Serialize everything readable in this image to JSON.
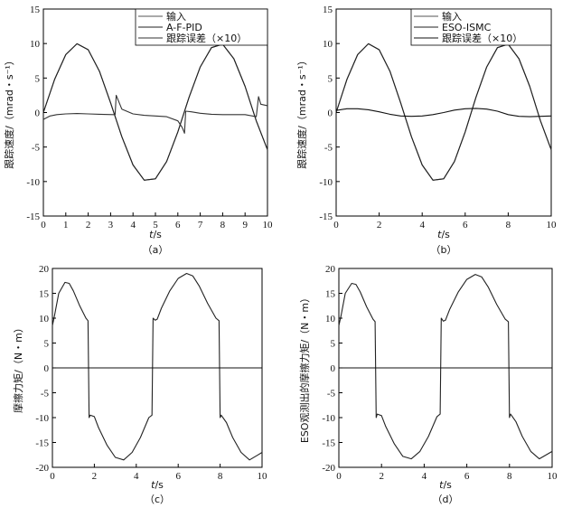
{
  "chart_data": [
    {
      "type": "line",
      "caption": "（a）",
      "xlabel_var": "t",
      "xlabel_unit": "/s",
      "ylabel": "跟踪速度/（mrad・s⁻¹）",
      "xlim": [
        0,
        10
      ],
      "ylim": [
        -15,
        15
      ],
      "xticks": [
        "0",
        "1",
        "2",
        "3",
        "4",
        "5",
        "6",
        "7",
        "8",
        "9",
        "10"
      ],
      "yticks": [
        "15",
        "10",
        "5",
        "0",
        "-5",
        "-10",
        "-15"
      ],
      "grid": false,
      "legend_position": "top-right",
      "series": [
        {
          "name": "输入",
          "color": "#555555",
          "x": [
            0,
            0.5,
            1,
            1.5,
            2,
            2.5,
            3,
            3.5,
            4,
            4.5,
            5,
            5.5,
            6,
            6.5,
            7,
            7.5,
            8,
            8.5,
            9,
            9.5,
            10
          ],
          "y": [
            0,
            4.8,
            8.4,
            9.97,
            9.1,
            6,
            1.4,
            -3.5,
            -7.6,
            -9.8,
            -9.6,
            -7.1,
            -2.8,
            2.2,
            6.6,
            9.4,
            9.9,
            7.8,
            3.8,
            -1.2,
            -5.4
          ]
        },
        {
          "name": "A-F-PID",
          "color": "#222222",
          "x": [
            0,
            0.5,
            1,
            1.5,
            2,
            2.5,
            3,
            3.5,
            4,
            4.5,
            5,
            5.5,
            6,
            6.5,
            7,
            7.5,
            8,
            8.5,
            9,
            9.5,
            10
          ],
          "y": [
            0,
            4.8,
            8.4,
            9.97,
            9.1,
            6,
            1.4,
            -3.5,
            -7.6,
            -9.8,
            -9.6,
            -7.1,
            -2.8,
            2.2,
            6.6,
            9.4,
            9.9,
            7.8,
            3.8,
            -1.2,
            -5.4
          ]
        },
        {
          "name": "跟踪误差（×10）",
          "color": "#333333",
          "x": [
            0,
            0.3,
            0.6,
            1,
            1.5,
            2,
            2.5,
            3.1,
            3.2,
            3.25,
            3.5,
            4,
            4.5,
            5,
            5.5,
            6,
            6.2,
            6.3,
            6.35,
            6.6,
            7,
            7.5,
            8,
            8.5,
            9,
            9.5,
            9.6,
            9.7,
            10
          ],
          "y": [
            -1,
            -0.5,
            -0.3,
            -0.2,
            -0.15,
            -0.2,
            -0.25,
            -0.3,
            -0.3,
            2.5,
            0.5,
            -0.2,
            -0.4,
            -0.5,
            -0.6,
            -1.2,
            -2.2,
            -3,
            0.2,
            0.1,
            -0.1,
            -0.25,
            -0.3,
            -0.3,
            -0.3,
            -0.6,
            2.3,
            1.2,
            1
          ]
        }
      ]
    },
    {
      "type": "line",
      "caption": "（b）",
      "xlabel_var": "t",
      "xlabel_unit": "/s",
      "ylabel": "跟踪速度/（mrad・s⁻¹）",
      "xlim": [
        0,
        10
      ],
      "ylim": [
        -15,
        15
      ],
      "xticks": [
        "0",
        "2",
        "4",
        "6",
        "8",
        "10"
      ],
      "yticks": [
        "15",
        "10",
        "5",
        "0",
        "-5",
        "-10",
        "-15"
      ],
      "grid": false,
      "legend_position": "top-right",
      "series": [
        {
          "name": "输入",
          "color": "#555555",
          "x": [
            0,
            0.5,
            1,
            1.5,
            2,
            2.5,
            3,
            3.5,
            4,
            4.5,
            5,
            5.5,
            6,
            6.5,
            7,
            7.5,
            8,
            8.5,
            9,
            9.5,
            10
          ],
          "y": [
            0,
            4.8,
            8.4,
            9.97,
            9.1,
            6,
            1.4,
            -3.5,
            -7.6,
            -9.8,
            -9.6,
            -7.1,
            -2.8,
            2.2,
            6.6,
            9.4,
            9.9,
            7.8,
            3.8,
            -1.2,
            -5.4
          ]
        },
        {
          "name": "ESO-ISMC",
          "color": "#222222",
          "x": [
            0,
            0.5,
            1,
            1.5,
            2,
            2.5,
            3,
            3.5,
            4,
            4.5,
            5,
            5.5,
            6,
            6.5,
            7,
            7.5,
            8,
            8.5,
            9,
            9.5,
            10
          ],
          "y": [
            0,
            4.8,
            8.4,
            9.97,
            9.1,
            6,
            1.4,
            -3.5,
            -7.6,
            -9.8,
            -9.6,
            -7.1,
            -2.8,
            2.2,
            6.6,
            9.4,
            9.9,
            7.8,
            3.8,
            -1.2,
            -5.4
          ]
        },
        {
          "name": "跟踪误差（×10）",
          "color": "#111111",
          "x": [
            0,
            0.5,
            1,
            1.5,
            2,
            2.5,
            3,
            3.5,
            4,
            4.5,
            5,
            5.5,
            6,
            6.5,
            7,
            7.5,
            8,
            8.5,
            9,
            9.5,
            10
          ],
          "y": [
            0.3,
            0.55,
            0.55,
            0.4,
            0.1,
            -0.25,
            -0.5,
            -0.55,
            -0.5,
            -0.3,
            0,
            0.35,
            0.55,
            0.6,
            0.5,
            0.2,
            -0.3,
            -0.55,
            -0.6,
            -0.55,
            -0.5
          ]
        }
      ]
    },
    {
      "type": "line",
      "caption": "（c）",
      "xlabel_var": "t",
      "xlabel_unit": "/s",
      "ylabel": "摩擦力矩/（N・m）",
      "xlim": [
        0,
        10
      ],
      "ylim": [
        -20,
        20
      ],
      "xticks": [
        "0",
        "2",
        "4",
        "6",
        "8",
        "10"
      ],
      "yticks": [
        "20",
        "15",
        "10",
        "5",
        "0",
        "-5",
        "-10",
        "-15",
        "-20"
      ],
      "grid": false,
      "legend_position": "none",
      "series": [
        {
          "name": "",
          "color": "#222222",
          "x": [
            0,
            0.1,
            0.3,
            0.6,
            0.8,
            1,
            1.3,
            1.6,
            1.7,
            1.75,
            1.8,
            2,
            2.2,
            2.6,
            3,
            3.4,
            3.8,
            4.2,
            4.6,
            4.75,
            4.8,
            4.9,
            5,
            5.2,
            5.6,
            6,
            6.4,
            6.7,
            7,
            7.4,
            7.8,
            7.95,
            8,
            8.05,
            8.3,
            8.6,
            9,
            9.4,
            9.8,
            10
          ],
          "y": [
            8.5,
            10.5,
            15,
            17.2,
            17,
            15.5,
            12.5,
            10,
            9.5,
            -10,
            -9.5,
            -9.8,
            -12,
            -15.5,
            -18,
            -18.5,
            -17,
            -14,
            -10,
            -9.5,
            10,
            9.6,
            9.8,
            12,
            15.5,
            18,
            19,
            18.5,
            16.5,
            13,
            10,
            9.5,
            -10,
            -9.5,
            -11,
            -14,
            -17,
            -18.5,
            -17.5,
            -17
          ]
        },
        {
          "name": "",
          "color": "#111111",
          "x": [
            0,
            10
          ],
          "y": [
            0,
            0
          ]
        }
      ]
    },
    {
      "type": "line",
      "caption": "（d）",
      "xlabel_var": "t",
      "xlabel_unit": "/s",
      "ylabel": "ESO观测出的摩擦力矩/（N・m）",
      "xlim": [
        0,
        10
      ],
      "ylim": [
        -20,
        20
      ],
      "xticks": [
        "0",
        "2",
        "4",
        "6",
        "8",
        "10"
      ],
      "yticks": [
        "20",
        "15",
        "10",
        "5",
        "0",
        "-5",
        "-10",
        "-15",
        "-20"
      ],
      "grid": false,
      "legend_position": "none",
      "series": [
        {
          "name": "",
          "color": "#222222",
          "x": [
            0,
            0.1,
            0.3,
            0.6,
            0.8,
            1,
            1.3,
            1.6,
            1.7,
            1.75,
            1.8,
            2,
            2.2,
            2.6,
            3,
            3.4,
            3.8,
            4.2,
            4.6,
            4.75,
            4.8,
            4.9,
            5,
            5.2,
            5.6,
            6,
            6.4,
            6.7,
            7,
            7.4,
            7.8,
            7.95,
            8,
            8.05,
            8.3,
            8.6,
            9,
            9.4,
            9.8,
            10
          ],
          "y": [
            8.5,
            10.5,
            15,
            17,
            16.8,
            15.3,
            12.3,
            9.8,
            9.3,
            -10,
            -9.3,
            -9.6,
            -11.8,
            -15.3,
            -17.8,
            -18.3,
            -16.8,
            -13.8,
            -9.8,
            -9.3,
            10,
            9.4,
            9.6,
            11.8,
            15.3,
            17.8,
            18.8,
            18.3,
            16.3,
            12.8,
            9.8,
            9.3,
            -10,
            -9.3,
            -10.8,
            -13.8,
            -16.8,
            -18.3,
            -17.3,
            -16.8
          ]
        },
        {
          "name": "",
          "color": "#111111",
          "x": [
            0,
            10
          ],
          "y": [
            0,
            0
          ]
        }
      ]
    }
  ]
}
